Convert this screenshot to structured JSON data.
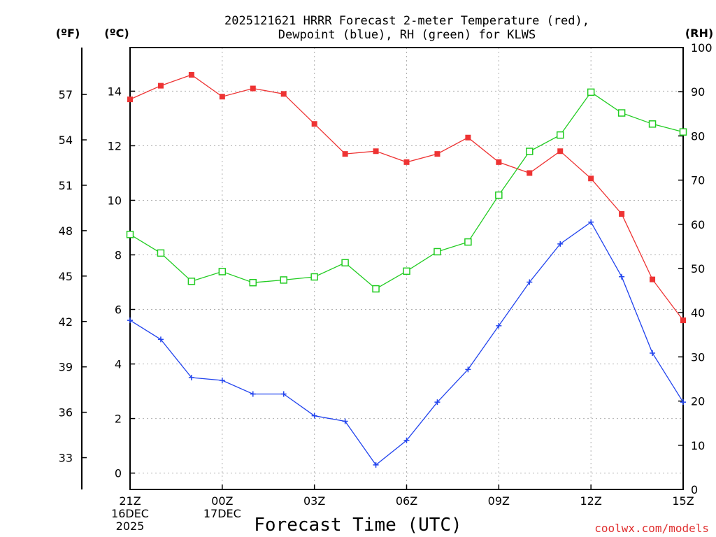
{
  "chart_data": {
    "type": "line",
    "title_lines": [
      "2025121621 HRRR Forecast 2-meter Temperature (red),",
      "Dewpoint (blue), RH (green) for KLWS"
    ],
    "xlabel": "Forecast Time (UTC)",
    "credit": "coolwx.com/models",
    "units": {
      "fahrenheit": "(ºF)",
      "celsius": "(ºC)",
      "rh": "(RH)"
    },
    "x_hours": [
      0,
      18
    ],
    "x_ticks": [
      {
        "hour": 0,
        "lines": [
          "21Z",
          "16DEC",
          "2025"
        ]
      },
      {
        "hour": 3,
        "lines": [
          "00Z",
          "17DEC"
        ]
      },
      {
        "hour": 6,
        "lines": [
          "03Z"
        ]
      },
      {
        "hour": 9,
        "lines": [
          "06Z"
        ]
      },
      {
        "hour": 12,
        "lines": [
          "09Z"
        ]
      },
      {
        "hour": 15,
        "lines": [
          "12Z"
        ]
      },
      {
        "hour": 18,
        "lines": [
          "15Z"
        ]
      }
    ],
    "celsius_axis": {
      "range": [
        -0.6,
        15.6
      ],
      "ticks": [
        0,
        2,
        4,
        6,
        8,
        10,
        12,
        14
      ]
    },
    "fahrenheit_axis": {
      "range": [
        30.9,
        60.1
      ],
      "ticks": [
        33,
        36,
        39,
        42,
        45,
        48,
        51,
        54,
        57
      ]
    },
    "rh_axis": {
      "range": [
        0,
        100
      ],
      "ticks": [
        0,
        10,
        20,
        30,
        40,
        50,
        60,
        70,
        80,
        90,
        100
      ]
    },
    "series": [
      {
        "name": "Temperature",
        "axis": "celsius",
        "color": "#ee3333",
        "marker": "filled-square",
        "x": [
          0,
          1,
          2,
          3,
          4,
          5,
          6,
          7,
          8,
          9,
          10,
          11,
          12,
          13,
          14,
          15,
          16,
          17,
          18
        ],
        "values": [
          13.7,
          14.2,
          14.6,
          13.8,
          14.1,
          13.9,
          12.8,
          11.7,
          11.8,
          11.4,
          11.7,
          12.3,
          11.4,
          11.0,
          11.8,
          10.8,
          9.5,
          7.1,
          5.6
        ]
      },
      {
        "name": "Dewpoint",
        "axis": "celsius",
        "color": "#2244ee",
        "marker": "plus",
        "x": [
          0,
          1,
          2,
          3,
          4,
          5,
          6,
          7,
          8,
          9,
          10,
          11,
          12,
          13,
          14,
          15,
          16,
          17,
          18
        ],
        "values": [
          5.6,
          4.9,
          3.5,
          3.4,
          2.9,
          2.9,
          2.1,
          1.9,
          0.3,
          1.2,
          2.6,
          3.8,
          5.4,
          7.0,
          8.4,
          9.2,
          7.2,
          4.4,
          2.6
        ]
      },
      {
        "name": "Relative Humidity",
        "axis": "rh",
        "color": "#22cc22",
        "marker": "open-square",
        "x": [
          0,
          1,
          2,
          3,
          4,
          5,
          6,
          7,
          8,
          9,
          10,
          11,
          12,
          13,
          14,
          15,
          16,
          17,
          18
        ],
        "values": [
          57.7,
          53.5,
          47.1,
          49.3,
          46.8,
          47.4,
          48.1,
          51.3,
          45.4,
          49.4,
          53.8,
          56.0,
          66.6,
          76.5,
          80.2,
          89.9,
          85.2,
          82.7,
          80.9
        ]
      }
    ]
  }
}
